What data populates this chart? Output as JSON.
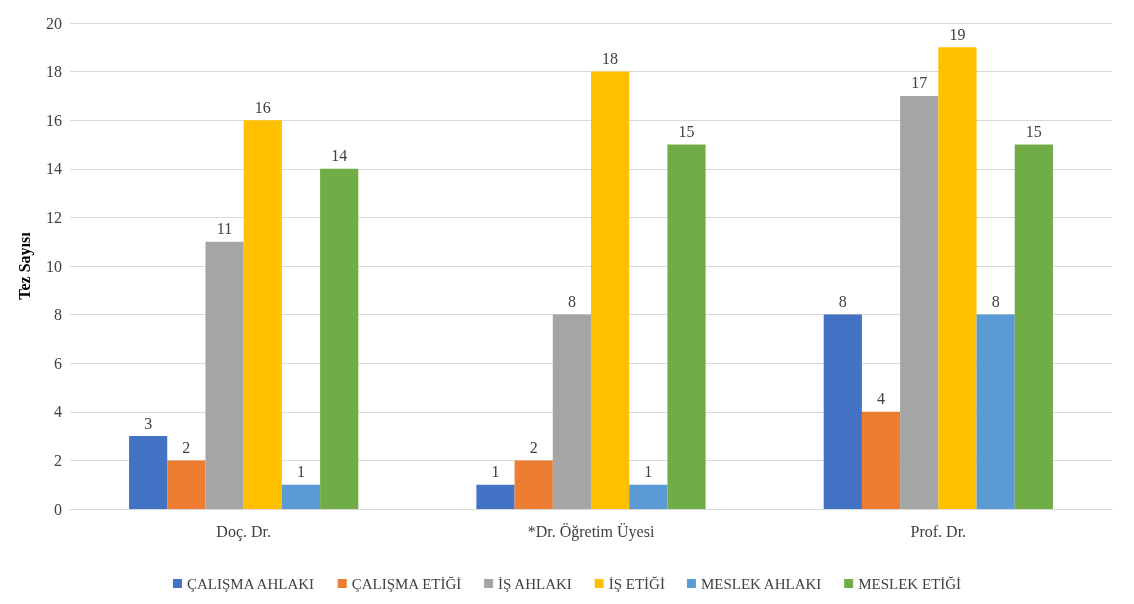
{
  "chart_data": {
    "type": "bar",
    "ylabel": "Tez Sayısı",
    "categories": [
      "Doç. Dr.",
      "*Dr. Öğretim Üyesi",
      "Prof. Dr."
    ],
    "series": [
      {
        "name": "ÇALIŞMA AHLAKI",
        "color": "#4472c4",
        "values": [
          3,
          1,
          8
        ]
      },
      {
        "name": "ÇALIŞMA ETİĞİ",
        "color": "#ed7d31",
        "values": [
          2,
          2,
          4
        ]
      },
      {
        "name": "İŞ AHLAKI",
        "color": "#a5a5a5",
        "values": [
          11,
          8,
          17
        ]
      },
      {
        "name": "İŞ ETİĞİ",
        "color": "#ffc000",
        "values": [
          16,
          18,
          19
        ]
      },
      {
        "name": "MESLEK AHLAKI",
        "color": "#5b9bd5",
        "values": [
          1,
          1,
          8
        ]
      },
      {
        "name": "MESLEK ETİĞİ",
        "color": "#70ad47",
        "values": [
          14,
          15,
          15
        ]
      }
    ],
    "ylim": [
      0,
      20
    ],
    "yticks": [
      0,
      2,
      4,
      6,
      8,
      10,
      12,
      14,
      16,
      18,
      20
    ],
    "grid": "y",
    "legend": "bottom",
    "data_labels": true
  }
}
